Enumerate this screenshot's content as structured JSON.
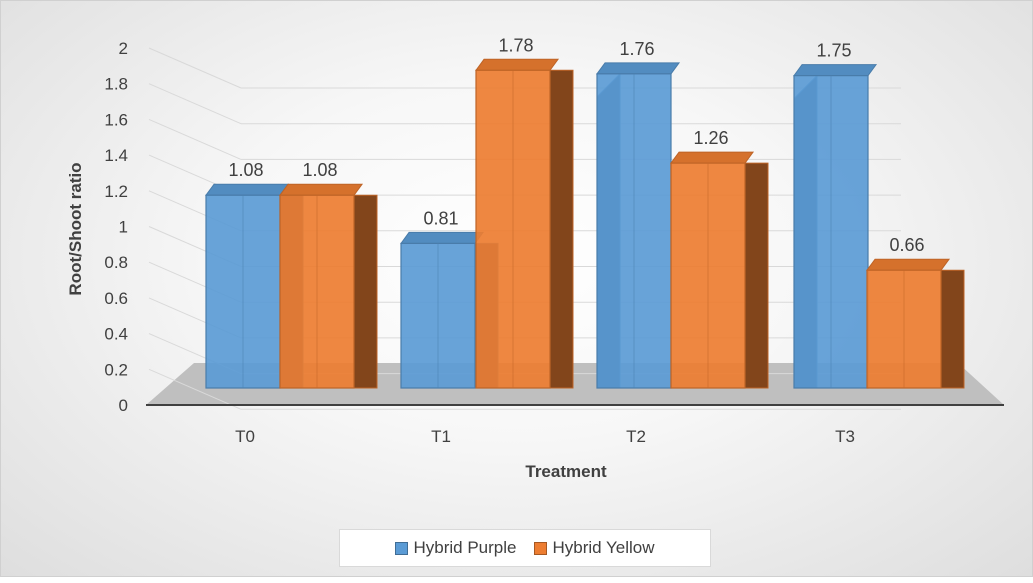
{
  "chart_data": {
    "type": "bar",
    "categories": [
      "T0",
      "T1",
      "T2",
      "T3"
    ],
    "series": [
      {
        "name": "Hybrid Purple",
        "values": [
          1.08,
          0.81,
          1.76,
          1.75
        ],
        "color": "#5b9bd5"
      },
      {
        "name": "Hybrid Yellow",
        "values": [
          1.08,
          1.78,
          1.26,
          0.66
        ],
        "color": "#ed7d31"
      }
    ],
    "data_labels": [
      [
        "1.08",
        "0.81",
        "1.76",
        "1.75"
      ],
      [
        "1.08",
        "1.78",
        "1.26",
        "0.66"
      ]
    ],
    "y_ticks": [
      "0",
      "0.2",
      "0.4",
      "0.6",
      "0.8",
      "1",
      "1.2",
      "1.4",
      "1.6",
      "1.8",
      "2"
    ],
    "xlabel": "Treatment",
    "ylabel": "Root/Shoot ratio",
    "ylim": [
      0,
      2
    ],
    "grid": true,
    "style": "3d-column",
    "legend_position": "bottom"
  }
}
